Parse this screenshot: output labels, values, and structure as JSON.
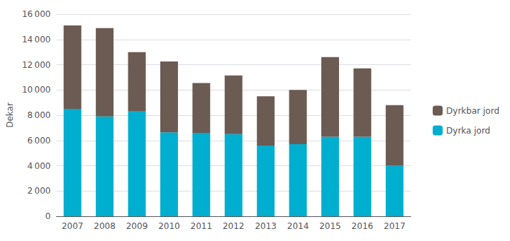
{
  "chart_data": {
    "type": "bar",
    "stacked": true,
    "categories": [
      "2007",
      "2008",
      "2009",
      "2010",
      "2011",
      "2012",
      "2013",
      "2014",
      "2015",
      "2016",
      "2017"
    ],
    "series": [
      {
        "name": "Dyrka jord",
        "color": "#00AECF",
        "values": [
          8500,
          7900,
          8300,
          6650,
          6600,
          6500,
          5600,
          5700,
          6300,
          6300,
          4000
        ]
      },
      {
        "name": "Dyrkbar jord",
        "color": "#6B5B52",
        "values": [
          6600,
          7000,
          4700,
          5600,
          3950,
          4650,
          3900,
          4300,
          6300,
          5400,
          4800
        ]
      }
    ],
    "ylabel": "Dekar",
    "ylim": [
      0,
      16000
    ],
    "yticks": [
      0,
      {
        "value": 2000,
        "label": "2 000"
      },
      {
        "value": 4000,
        "label": "4 000"
      },
      {
        "value": 6000,
        "label": "6 000"
      },
      {
        "value": 8000,
        "label": "8 000"
      },
      {
        "value": 10000,
        "label": "10 000"
      },
      {
        "value": 12000,
        "label": "12 000"
      },
      {
        "value": 14000,
        "label": "14 000"
      },
      {
        "value": 16000,
        "label": "16 000"
      }
    ],
    "grid": true,
    "legend": "right"
  }
}
